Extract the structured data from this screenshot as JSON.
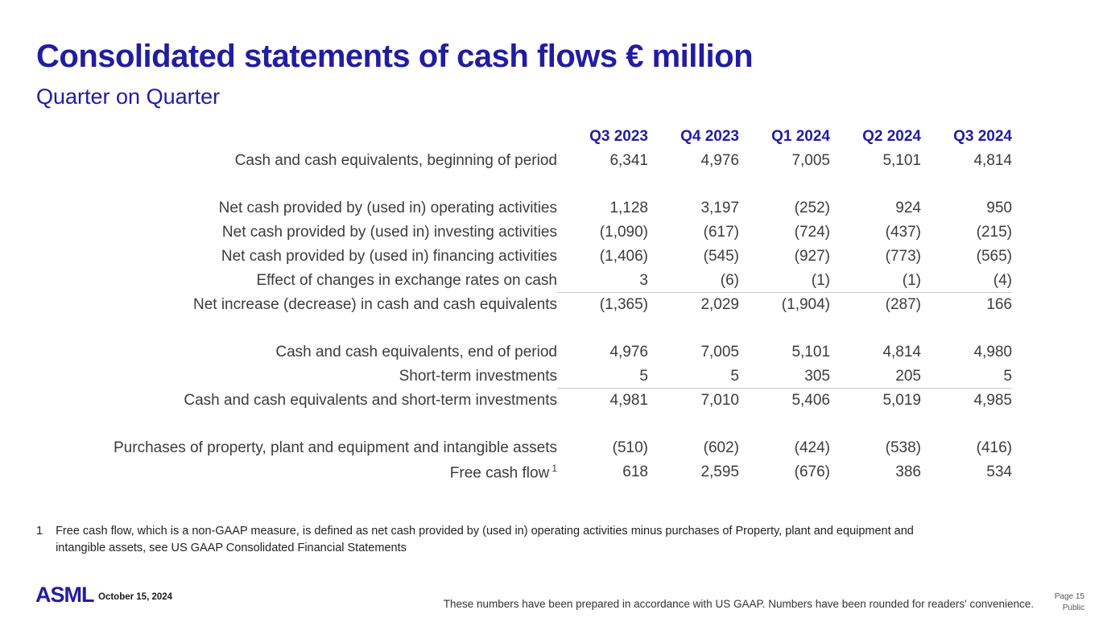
{
  "slide": {
    "title": "Consolidated statements of cash flows € million",
    "subtitle": "Quarter on Quarter"
  },
  "table": {
    "columns": [
      "Q3 2023",
      "Q4 2023",
      "Q1 2024",
      "Q2 2024",
      "Q3 2024"
    ],
    "rows": [
      {
        "label": "Cash and cash equivalents, beginning of period",
        "values": [
          "6,341",
          "4,976",
          "7,005",
          "5,101",
          "4,814"
        ]
      },
      {
        "label": "Net cash provided by (used in) operating activities",
        "values": [
          "1,128",
          "3,197",
          "(252)",
          "924",
          "950"
        ]
      },
      {
        "label": "Net cash provided by (used in) investing activities",
        "values": [
          "(1,090)",
          "(617)",
          "(724)",
          "(437)",
          "(215)"
        ]
      },
      {
        "label": "Net cash provided by (used in) financing activities",
        "values": [
          "(1,406)",
          "(545)",
          "(927)",
          "(773)",
          "(565)"
        ]
      },
      {
        "label": "Effect of changes in exchange rates on cash",
        "values": [
          "3",
          "(6)",
          "(1)",
          "(1)",
          "(4)"
        ]
      },
      {
        "label": "Net increase (decrease) in cash and cash equivalents",
        "values": [
          "(1,365)",
          "2,029",
          "(1,904)",
          "(287)",
          "166"
        ]
      },
      {
        "label": "Cash and cash equivalents, end of period",
        "values": [
          "4,976",
          "7,005",
          "5,101",
          "4,814",
          "4,980"
        ]
      },
      {
        "label": "Short-term investments",
        "values": [
          "5",
          "5",
          "305",
          "205",
          "5"
        ]
      },
      {
        "label": "Cash and cash equivalents and short-term investments",
        "values": [
          "4,981",
          "7,010",
          "5,406",
          "5,019",
          "4,985"
        ]
      },
      {
        "label": "Purchases of property, plant and equipment and intangible assets",
        "values": [
          "(510)",
          "(602)",
          "(424)",
          "(538)",
          "(416)"
        ]
      },
      {
        "label": "Free cash flow",
        "footnote_ref": "1",
        "values": [
          "618",
          "2,595",
          "(676)",
          "386",
          "534"
        ]
      }
    ]
  },
  "footnote": {
    "marker": "1",
    "text": "Free cash flow, which is a non-GAAP measure, is defined as net cash provided by (used in) operating activities minus purchases of Property, plant and equipment and intangible assets, see US GAAP Consolidated Financial Statements"
  },
  "footer": {
    "logo": "ASML",
    "date": "October 15, 2024",
    "disclaimer": "These numbers have been prepared in accordance with US GAAP.  Numbers have been rounded for readers' convenience.",
    "page": "Page 15",
    "classification": "Public"
  },
  "colors": {
    "brand_navy": "#211da1",
    "body_text": "#3c3c3c",
    "rule_line": "#c9c9c9"
  }
}
